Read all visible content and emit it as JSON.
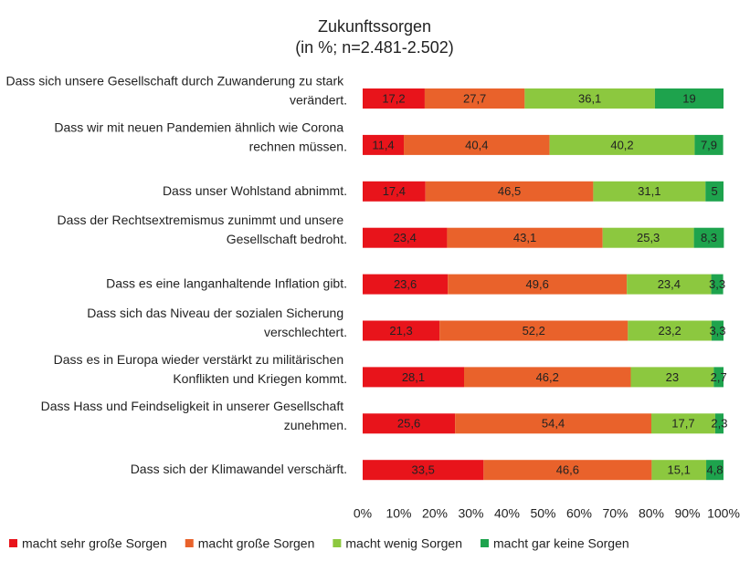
{
  "chart_data": {
    "type": "stacked_barh",
    "title": "Zukunftssorgen",
    "subtitle": "(in %; n=2.481-2.502)",
    "categories": [
      "Dass sich unsere Gesellschaft durch Zuwanderung zu stark verändert.",
      "Dass wir mit neuen Pandemien ähnlich wie Corona rechnen müssen.",
      "Dass unser Wohlstand abnimmt.",
      "Dass der Rechtsextremismus zunimmt und unsere Gesellschaft bedroht.",
      "Dass es eine langanhaltende Inflation gibt.",
      "Dass sich das Niveau der sozialen Sicherung verschlechtert.",
      "Dass es in Europa wieder verstärkt zu militärischen Konflikten und Kriegen kommt.",
      "Dass Hass und Feindseligkeit in unserer Gesellschaft zunehmen.",
      "Dass sich der Klimawandel verschärft."
    ],
    "series": [
      {
        "name": "macht sehr große Sorgen",
        "color": "#e8141b",
        "values": [
          17.2,
          11.4,
          17.4,
          23.4,
          23.6,
          21.3,
          28.1,
          25.6,
          33.5
        ],
        "value_labels": [
          "17,2",
          "11,4",
          "17,4",
          "23,4",
          "23,6",
          "21,3",
          "28,1",
          "25,6",
          "33,5"
        ]
      },
      {
        "name": "macht große Sorgen",
        "color": "#e9622b",
        "values": [
          27.7,
          40.4,
          46.5,
          43.1,
          49.6,
          52.2,
          46.2,
          54.4,
          46.6
        ],
        "value_labels": [
          "27,7",
          "40,4",
          "46,5",
          "43,1",
          "49,6",
          "52,2",
          "46,2",
          "54,4",
          "46,6"
        ]
      },
      {
        "name": "macht wenig Sorgen",
        "color": "#8cc83f",
        "values": [
          36.1,
          40.2,
          31.1,
          25.3,
          23.4,
          23.2,
          23,
          17.7,
          15.1
        ],
        "value_labels": [
          "36,1",
          "40,2",
          "31,1",
          "25,3",
          "23,4",
          "23,2",
          "23",
          "17,7",
          "15,1"
        ]
      },
      {
        "name": "macht gar keine Sorgen",
        "color": "#1ea34d",
        "values": [
          19,
          7.9,
          5,
          8.3,
          3.3,
          3.3,
          2.7,
          2.3,
          4.8
        ],
        "value_labels": [
          "19",
          "7,9",
          "5",
          "8,3",
          "3,3",
          "3,3",
          "2,7",
          "2,3",
          "4,8"
        ]
      }
    ],
    "xlim": [
      0,
      100
    ],
    "xticks": [
      {
        "value": 0,
        "label": "0%"
      },
      {
        "value": 10,
        "label": "10%"
      },
      {
        "value": 20,
        "label": "20%"
      },
      {
        "value": 30,
        "label": "30%"
      },
      {
        "value": 40,
        "label": "40%"
      },
      {
        "value": 50,
        "label": "50%"
      },
      {
        "value": 60,
        "label": "60%"
      },
      {
        "value": 70,
        "label": "70%"
      },
      {
        "value": 80,
        "label": "80%"
      },
      {
        "value": 90,
        "label": "90%"
      },
      {
        "value": 100,
        "label": "100%"
      }
    ],
    "legend": "bottom"
  }
}
